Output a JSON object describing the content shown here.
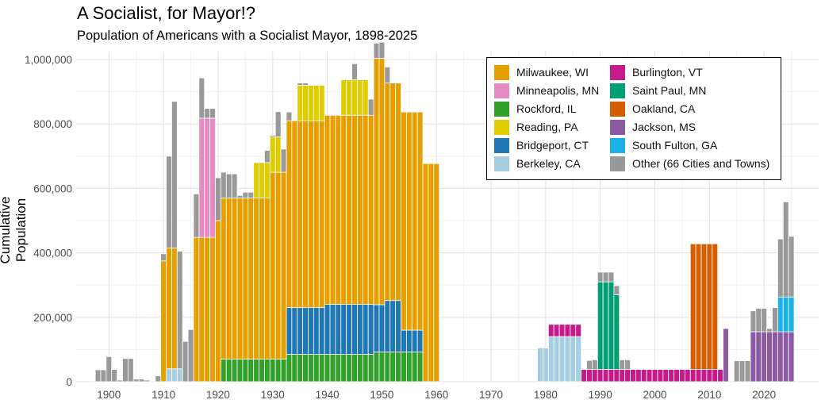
{
  "chart_data": {
    "type": "bar",
    "stacked": true,
    "title": "A Socialist, for Mayor!?",
    "subtitle": "Population of Americans with a Socialist Mayor, 1898-2025",
    "xlabel": "",
    "ylabel": "Cumulative Population",
    "xlim": [
      1894,
      2030
    ],
    "ylim": [
      0,
      1000000
    ],
    "x_ticks": [
      1900,
      1910,
      1920,
      1930,
      1940,
      1950,
      1960,
      1970,
      1980,
      1990,
      2000,
      2010,
      2020
    ],
    "y_ticks": [
      0,
      200000,
      400000,
      600000,
      800000,
      1000000
    ],
    "y_tick_labels": [
      "0",
      "200,000",
      "400,000",
      "600,000",
      "800,000",
      "1,000,000"
    ],
    "legend_position": "top-right",
    "series": [
      {
        "name": "Rockford, IL",
        "color": "#33a02c",
        "data": [
          [
            1921,
            70000
          ],
          [
            1922,
            70000
          ],
          [
            1923,
            70000
          ],
          [
            1924,
            70000
          ],
          [
            1925,
            70000
          ],
          [
            1926,
            70000
          ],
          [
            1927,
            70000
          ],
          [
            1928,
            70000
          ],
          [
            1929,
            70000
          ],
          [
            1930,
            70000
          ],
          [
            1931,
            70000
          ],
          [
            1932,
            70000
          ],
          [
            1933,
            85000
          ],
          [
            1934,
            85000
          ],
          [
            1935,
            85000
          ],
          [
            1936,
            85000
          ],
          [
            1937,
            85000
          ],
          [
            1938,
            85000
          ],
          [
            1939,
            85000
          ],
          [
            1940,
            85000
          ],
          [
            1941,
            85000
          ],
          [
            1942,
            85000
          ],
          [
            1943,
            85000
          ],
          [
            1944,
            85000
          ],
          [
            1945,
            85000
          ],
          [
            1946,
            85000
          ],
          [
            1947,
            85000
          ],
          [
            1948,
            85000
          ],
          [
            1949,
            92000
          ],
          [
            1950,
            92000
          ],
          [
            1951,
            92000
          ],
          [
            1952,
            92000
          ],
          [
            1953,
            92000
          ],
          [
            1954,
            92000
          ],
          [
            1955,
            92000
          ],
          [
            1956,
            92000
          ],
          [
            1957,
            92000
          ]
        ]
      },
      {
        "name": "Bridgeport, CT",
        "color": "#1f78b4",
        "data": [
          [
            1933,
            145000
          ],
          [
            1934,
            145000
          ],
          [
            1935,
            145000
          ],
          [
            1936,
            145000
          ],
          [
            1937,
            145000
          ],
          [
            1938,
            145000
          ],
          [
            1939,
            145000
          ],
          [
            1940,
            155000
          ],
          [
            1941,
            155000
          ],
          [
            1942,
            155000
          ],
          [
            1943,
            155000
          ],
          [
            1944,
            155000
          ],
          [
            1945,
            155000
          ],
          [
            1946,
            155000
          ],
          [
            1947,
            155000
          ],
          [
            1948,
            155000
          ],
          [
            1949,
            147000
          ],
          [
            1950,
            147000
          ],
          [
            1951,
            160000
          ],
          [
            1952,
            160000
          ],
          [
            1953,
            160000
          ],
          [
            1954,
            68000
          ],
          [
            1955,
            68000
          ],
          [
            1956,
            68000
          ],
          [
            1957,
            68000
          ]
        ]
      },
      {
        "name": "Berkeley, CA",
        "color": "#a6cee3",
        "data": [
          [
            1911,
            40000
          ],
          [
            1912,
            40000
          ],
          [
            1913,
            40000
          ],
          [
            1979,
            105000
          ],
          [
            1980,
            105000
          ],
          [
            1981,
            140000
          ],
          [
            1982,
            140000
          ],
          [
            1983,
            140000
          ],
          [
            1984,
            140000
          ],
          [
            1985,
            140000
          ],
          [
            1986,
            140000
          ]
        ]
      },
      {
        "name": "Milwaukee, WI",
        "color": "#e69f00",
        "data": [
          [
            1910,
            375000
          ],
          [
            1911,
            375000
          ],
          [
            1912,
            375000
          ],
          [
            1916,
            448000
          ],
          [
            1917,
            448000
          ],
          [
            1918,
            448000
          ],
          [
            1919,
            448000
          ],
          [
            1920,
            500000
          ],
          [
            1921,
            500000
          ],
          [
            1922,
            500000
          ],
          [
            1923,
            500000
          ],
          [
            1924,
            500000
          ],
          [
            1925,
            500000
          ],
          [
            1926,
            500000
          ],
          [
            1927,
            500000
          ],
          [
            1928,
            500000
          ],
          [
            1929,
            500000
          ],
          [
            1930,
            580000
          ],
          [
            1931,
            580000
          ],
          [
            1932,
            580000
          ],
          [
            1933,
            580000
          ],
          [
            1934,
            580000
          ],
          [
            1935,
            580000
          ],
          [
            1936,
            580000
          ],
          [
            1937,
            580000
          ],
          [
            1938,
            580000
          ],
          [
            1939,
            580000
          ],
          [
            1940,
            587000
          ],
          [
            1941,
            587000
          ],
          [
            1942,
            587000
          ],
          [
            1943,
            587000
          ],
          [
            1944,
            587000
          ],
          [
            1945,
            587000
          ],
          [
            1946,
            587000
          ],
          [
            1947,
            587000
          ],
          [
            1948,
            587000
          ],
          [
            1949,
            765000
          ],
          [
            1950,
            765000
          ],
          [
            1951,
            675000
          ],
          [
            1952,
            675000
          ],
          [
            1953,
            675000
          ],
          [
            1954,
            677000
          ],
          [
            1955,
            677000
          ],
          [
            1956,
            677000
          ],
          [
            1957,
            677000
          ],
          [
            1958,
            677000
          ],
          [
            1959,
            677000
          ],
          [
            1960,
            677000
          ]
        ]
      },
      {
        "name": "Minneapolis, MN",
        "color": "#e78ac3",
        "data": [
          [
            1917,
            370000
          ],
          [
            1918,
            370000
          ],
          [
            1919,
            370000
          ]
        ]
      },
      {
        "name": "Reading, PA",
        "color": "#e0cc00",
        "data": [
          [
            1927,
            110000
          ],
          [
            1928,
            110000
          ],
          [
            1929,
            110000
          ],
          [
            1930,
            110000
          ],
          [
            1931,
            110000
          ],
          [
            1935,
            110000
          ],
          [
            1936,
            110000
          ],
          [
            1937,
            110000
          ],
          [
            1938,
            110000
          ],
          [
            1939,
            110000
          ],
          [
            1943,
            110000
          ],
          [
            1944,
            110000
          ],
          [
            1945,
            110000
          ],
          [
            1946,
            110000
          ],
          [
            1947,
            110000
          ]
        ]
      },
      {
        "name": "Burlington, VT",
        "color": "#c51b8a",
        "data": [
          [
            1981,
            38000
          ],
          [
            1982,
            38000
          ],
          [
            1983,
            38000
          ],
          [
            1984,
            38000
          ],
          [
            1985,
            38000
          ],
          [
            1986,
            38000
          ],
          [
            1987,
            38000
          ],
          [
            1988,
            38000
          ],
          [
            1989,
            38000
          ],
          [
            1990,
            38000
          ],
          [
            1991,
            38000
          ],
          [
            1992,
            38000
          ],
          [
            1993,
            38000
          ],
          [
            1994,
            38000
          ],
          [
            1995,
            38000
          ],
          [
            1996,
            38000
          ],
          [
            1997,
            38000
          ],
          [
            1998,
            38000
          ],
          [
            1999,
            38000
          ],
          [
            2000,
            38000
          ],
          [
            2001,
            38000
          ],
          [
            2002,
            38000
          ],
          [
            2003,
            38000
          ],
          [
            2004,
            38000
          ],
          [
            2005,
            38000
          ],
          [
            2006,
            38000
          ],
          [
            2007,
            38000
          ],
          [
            2008,
            38000
          ],
          [
            2009,
            38000
          ],
          [
            2010,
            38000
          ],
          [
            2011,
            38000
          ],
          [
            2012,
            38000
          ]
        ]
      },
      {
        "name": "Saint Paul, MN",
        "color": "#009e73",
        "data": [
          [
            1990,
            272000
          ],
          [
            1991,
            272000
          ],
          [
            1992,
            272000
          ],
          [
            1993,
            232000
          ]
        ]
      },
      {
        "name": "Oakland, CA",
        "color": "#d55e00",
        "data": [
          [
            2007,
            390000
          ],
          [
            2008,
            390000
          ],
          [
            2009,
            390000
          ],
          [
            2010,
            390000
          ],
          [
            2011,
            390000
          ]
        ]
      },
      {
        "name": "Jackson, MS",
        "color": "#8c5aa2",
        "data": [
          [
            2013,
            165000
          ],
          [
            2018,
            155000
          ],
          [
            2019,
            155000
          ],
          [
            2020,
            155000
          ],
          [
            2021,
            155000
          ],
          [
            2022,
            155000
          ],
          [
            2023,
            155000
          ],
          [
            2024,
            155000
          ],
          [
            2025,
            155000
          ]
        ]
      },
      {
        "name": "South Fulton, GA",
        "color": "#1ab2e8",
        "data": [
          [
            2023,
            108000
          ],
          [
            2024,
            108000
          ],
          [
            2025,
            108000
          ]
        ]
      },
      {
        "name": "Other (66 Cities and Towns)",
        "color": "#999999",
        "data": [
          [
            1898,
            37000
          ],
          [
            1899,
            37000
          ],
          [
            1900,
            78000
          ],
          [
            1901,
            38000
          ],
          [
            1902,
            5000
          ],
          [
            1903,
            72000
          ],
          [
            1904,
            72000
          ],
          [
            1905,
            8000
          ],
          [
            1906,
            8000
          ],
          [
            1907,
            5000
          ],
          [
            1909,
            18000
          ],
          [
            1910,
            22000
          ],
          [
            1911,
            285000
          ],
          [
            1912,
            455000
          ],
          [
            1913,
            365000
          ],
          [
            1914,
            125000
          ],
          [
            1915,
            162000
          ],
          [
            1916,
            135000
          ],
          [
            1917,
            125000
          ],
          [
            1918,
            30000
          ],
          [
            1919,
            30000
          ],
          [
            1920,
            133000
          ],
          [
            1921,
            80000
          ],
          [
            1922,
            75000
          ],
          [
            1923,
            75000
          ],
          [
            1924,
            8000
          ],
          [
            1925,
            18000
          ],
          [
            1926,
            18000
          ],
          [
            1929,
            38000
          ],
          [
            1930,
            5000
          ],
          [
            1931,
            78000
          ],
          [
            1932,
            72000
          ],
          [
            1933,
            27000
          ],
          [
            1935,
            7000
          ],
          [
            1936,
            7000
          ],
          [
            1945,
            50000
          ],
          [
            1948,
            50000
          ],
          [
            1949,
            47000
          ],
          [
            1950,
            50000
          ],
          [
            1951,
            50000
          ],
          [
            1988,
            28000
          ],
          [
            1989,
            30000
          ],
          [
            1990,
            30000
          ],
          [
            1991,
            30000
          ],
          [
            1992,
            30000
          ],
          [
            1993,
            28000
          ],
          [
            1994,
            30000
          ],
          [
            1995,
            30000
          ],
          [
            2015,
            65000
          ],
          [
            2016,
            65000
          ],
          [
            2017,
            65000
          ],
          [
            2018,
            65000
          ],
          [
            2019,
            73000
          ],
          [
            2020,
            73000
          ],
          [
            2021,
            10000
          ],
          [
            2022,
            75000
          ],
          [
            2023,
            180000
          ],
          [
            2024,
            295000
          ],
          [
            2025,
            188000
          ]
        ]
      }
    ],
    "legend_entries": [
      {
        "name": "Milwaukee, WI",
        "color": "#e69f00"
      },
      {
        "name": "Minneapolis, MN",
        "color": "#e78ac3"
      },
      {
        "name": "Rockford, IL",
        "color": "#33a02c"
      },
      {
        "name": "Reading, PA",
        "color": "#e0cc00"
      },
      {
        "name": "Bridgeport, CT",
        "color": "#1f78b4"
      },
      {
        "name": "Berkeley, CA",
        "color": "#a6cee3"
      },
      {
        "name": "Burlington, VT",
        "color": "#c51b8a"
      },
      {
        "name": "Saint Paul, MN",
        "color": "#009e73"
      },
      {
        "name": "Oakland, CA",
        "color": "#d55e00"
      },
      {
        "name": "Jackson, MS",
        "color": "#8c5aa2"
      },
      {
        "name": "South Fulton, GA",
        "color": "#1ab2e8"
      },
      {
        "name": "Other (66 Cities and Towns)",
        "color": "#999999"
      }
    ]
  }
}
